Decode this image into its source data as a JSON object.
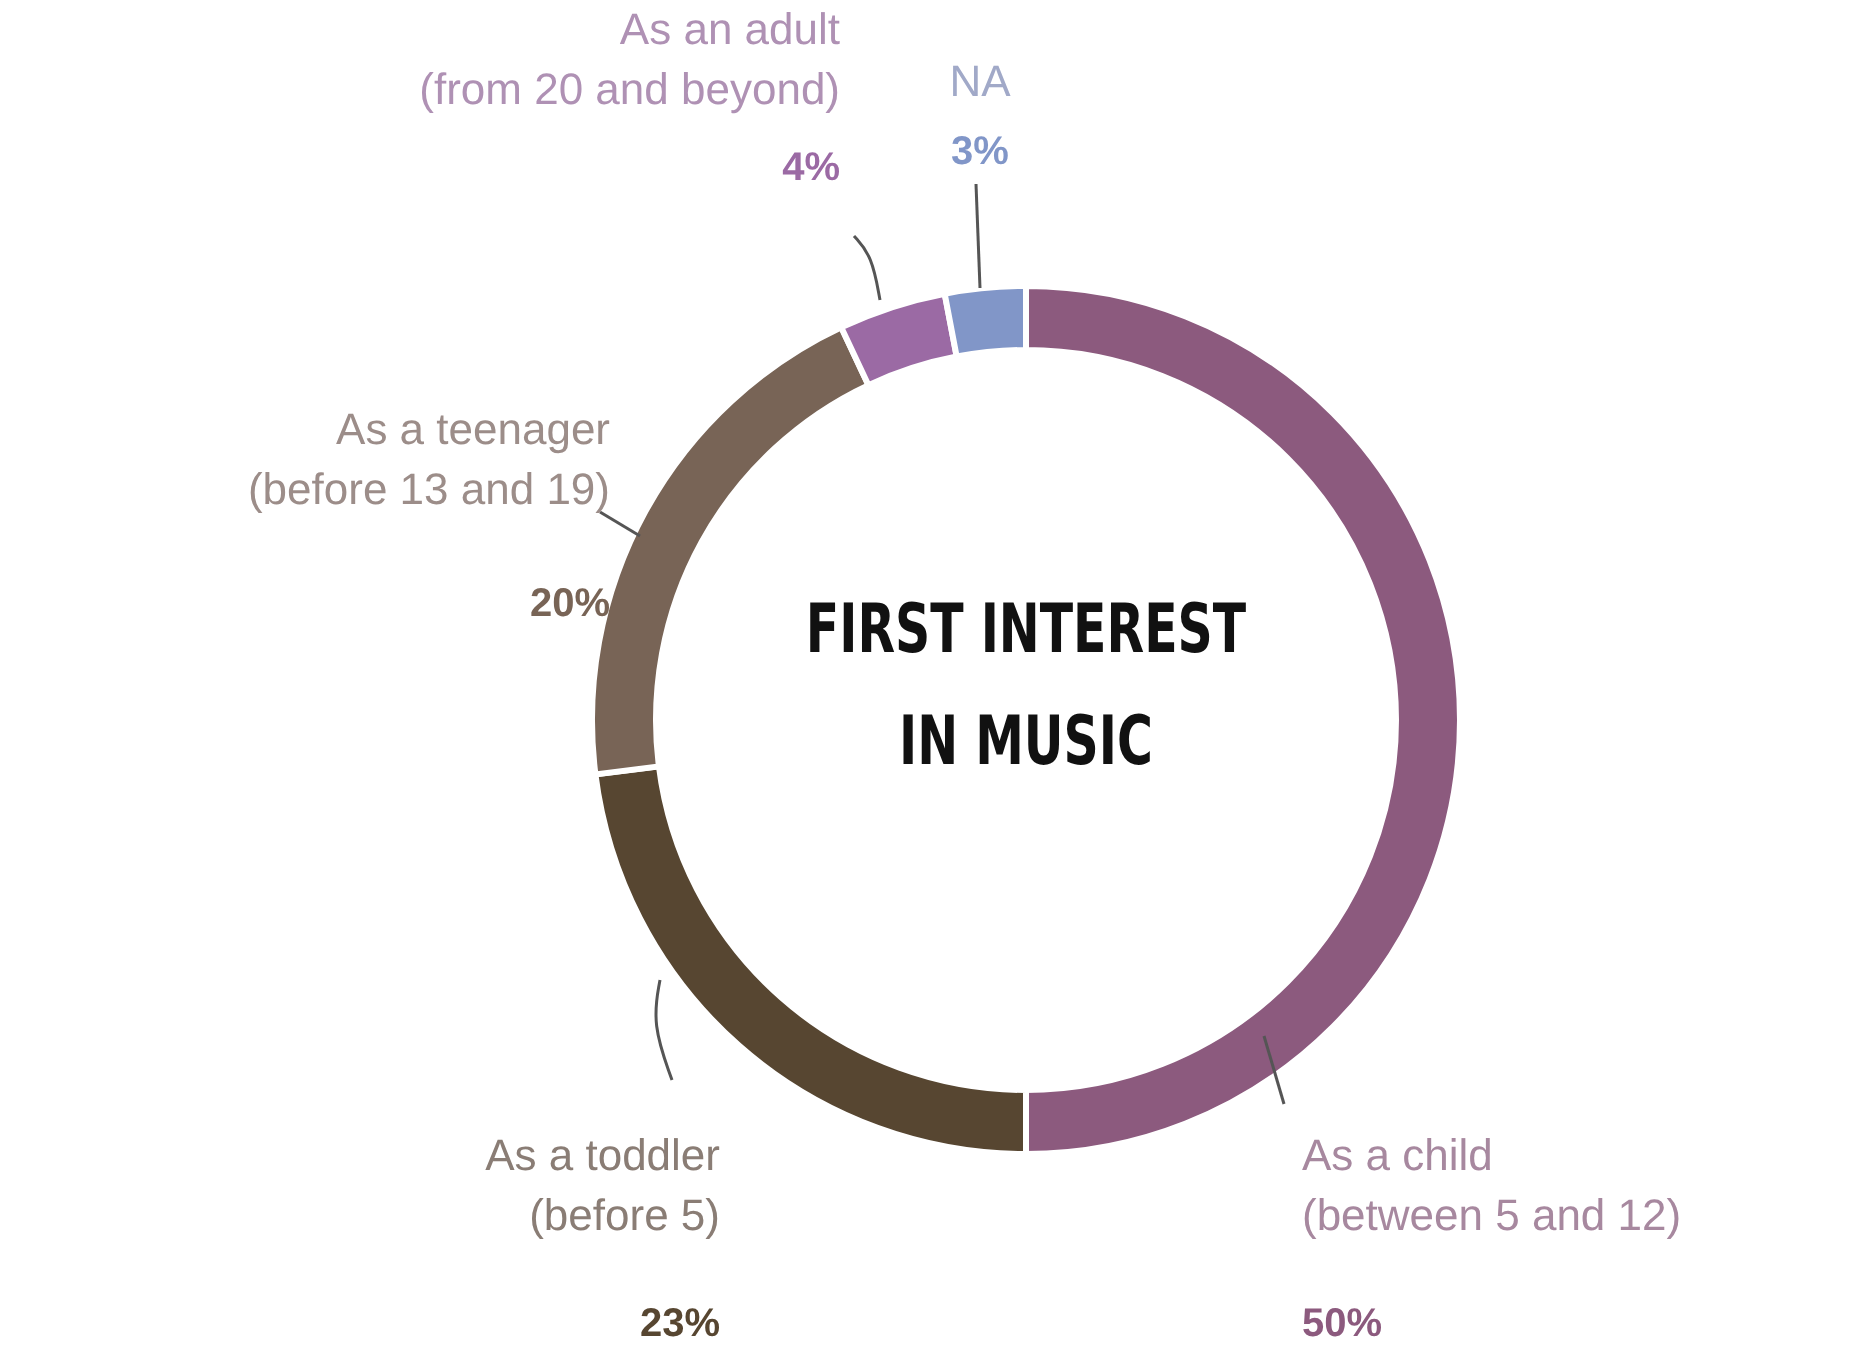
{
  "chart_data": {
    "type": "donut",
    "title": "FIRST INTEREST IN MUSIC",
    "categories": [
      "As a child (between 5 and 12)",
      "As a toddler (before 5)",
      "As a teenager (before 13 and 19)",
      "As an adult (from 20 and beyond)",
      "NA"
    ],
    "values": [
      50,
      23,
      20,
      4,
      3
    ],
    "colors": [
      "#8c5a7e",
      "#574631",
      "#786456",
      "#9b6aa4",
      "#8196c8"
    ],
    "value_labels": [
      "50%",
      "23%",
      "20%",
      "4%",
      "3%"
    ]
  }
}
